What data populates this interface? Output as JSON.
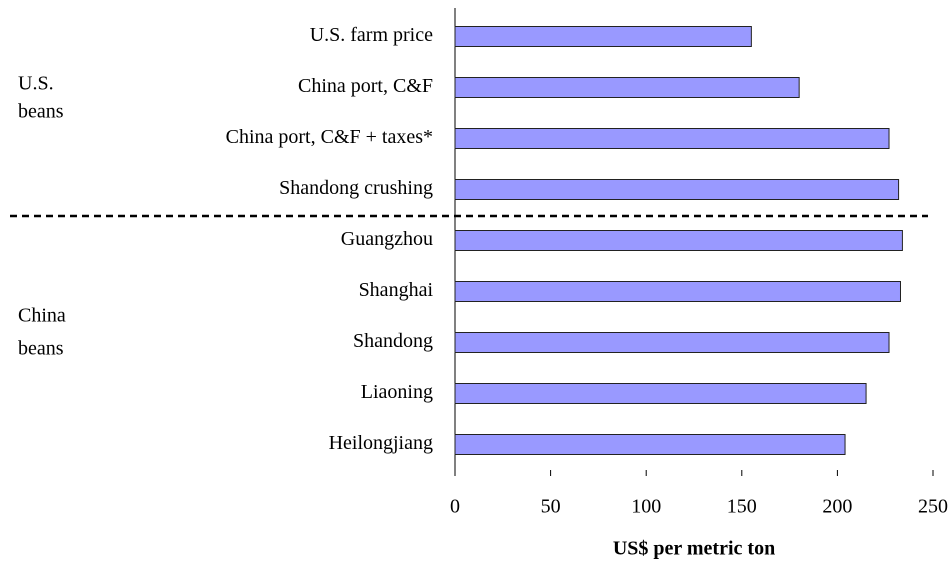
{
  "chart_data": {
    "type": "bar",
    "orientation": "horizontal",
    "categories": [
      "U.S. farm price",
      "China port, C&F",
      "China port, C&F + taxes*",
      "Shandong crushing",
      "Guangzhou",
      "Shanghai",
      "Shandong",
      "Liaoning",
      "Heilongjiang"
    ],
    "values": [
      155,
      180,
      227,
      232,
      234,
      233,
      227,
      215,
      204
    ],
    "color": "#9999ff",
    "groups": [
      {
        "label": [
          "U.S.",
          "beans"
        ]
      },
      {
        "label": [
          "China",
          "beans"
        ]
      }
    ],
    "xlabel": "US$ per metric ton",
    "xlim": [
      0,
      250
    ],
    "xticks": [
      0,
      50,
      100,
      150,
      200,
      250
    ]
  }
}
